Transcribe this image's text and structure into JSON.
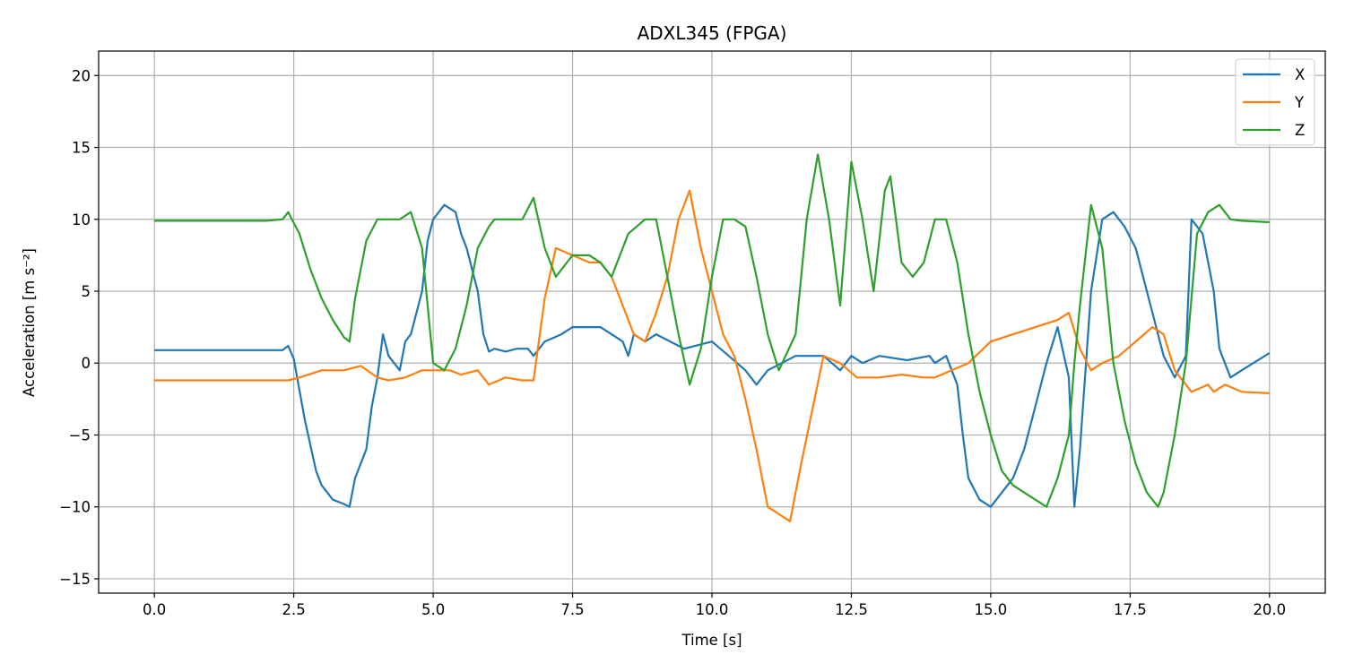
{
  "chart_data": {
    "type": "line",
    "title": "ADXL345 (FPGA)",
    "xlabel": "Time [s]",
    "ylabel": "Acceleration [m s⁻²]",
    "xlim": [
      -1.0,
      21.0
    ],
    "ylim": [
      -16.0,
      21.7
    ],
    "xticks": [
      0.0,
      2.5,
      5.0,
      7.5,
      10.0,
      12.5,
      15.0,
      17.5,
      20.0
    ],
    "xtick_labels": [
      "0.0",
      "2.5",
      "5.0",
      "7.5",
      "10.0",
      "12.5",
      "15.0",
      "17.5",
      "20.0"
    ],
    "yticks": [
      -15,
      -10,
      -5,
      0,
      5,
      10,
      15,
      20
    ],
    "ytick_labels": [
      "−15",
      "−10",
      "−5",
      "0",
      "5",
      "10",
      "15",
      "20"
    ],
    "grid": true,
    "legend_position": "top-right",
    "series": [
      {
        "name": "X",
        "color": "#1f77b4",
        "x": [
          0.0,
          1.0,
          2.0,
          2.3,
          2.4,
          2.5,
          2.7,
          2.9,
          3.0,
          3.2,
          3.4,
          3.5,
          3.6,
          3.8,
          3.9,
          4.0,
          4.1,
          4.2,
          4.4,
          4.5,
          4.6,
          4.8,
          4.9,
          5.0,
          5.2,
          5.4,
          5.5,
          5.6,
          5.8,
          5.9,
          6.0,
          6.1,
          6.3,
          6.5,
          6.7,
          6.8,
          7.0,
          7.3,
          7.5,
          8.0,
          8.2,
          8.4,
          8.5,
          8.6,
          8.8,
          9.0,
          9.5,
          10.0,
          10.3,
          10.6,
          10.8,
          11.0,
          11.5,
          12.0,
          12.3,
          12.5,
          12.7,
          13.0,
          13.5,
          13.9,
          14.0,
          14.2,
          14.4,
          14.5,
          14.6,
          14.8,
          15.0,
          15.2,
          15.4,
          15.6,
          15.8,
          16.0,
          16.2,
          16.4,
          16.5,
          16.6,
          16.8,
          17.0,
          17.2,
          17.4,
          17.6,
          17.8,
          18.0,
          18.1,
          18.3,
          18.5,
          18.6,
          18.8,
          19.0,
          19.1,
          19.3,
          19.5,
          20.0
        ],
        "y": [
          0.9,
          0.9,
          0.9,
          0.9,
          1.2,
          0.3,
          -4.0,
          -7.5,
          -8.5,
          -9.5,
          -9.8,
          -10.0,
          -8.0,
          -6.0,
          -3.0,
          -1.0,
          2.0,
          0.5,
          -0.5,
          1.5,
          2.0,
          5.0,
          8.5,
          10.0,
          11.0,
          10.5,
          9.0,
          8.0,
          5.0,
          2.0,
          0.8,
          1.0,
          0.8,
          1.0,
          1.0,
          0.5,
          1.5,
          2.0,
          2.5,
          2.5,
          2.0,
          1.5,
          0.5,
          2.0,
          1.5,
          2.0,
          1.0,
          1.5,
          0.5,
          -0.5,
          -1.5,
          -0.5,
          0.5,
          0.5,
          -0.5,
          0.5,
          0.0,
          0.5,
          0.2,
          0.5,
          0.0,
          0.5,
          -1.5,
          -5.0,
          -8.0,
          -9.5,
          -10.0,
          -9.0,
          -8.0,
          -6.0,
          -3.0,
          0.0,
          2.5,
          -1.0,
          -10.0,
          -6.0,
          5.0,
          10.0,
          10.5,
          9.5,
          8.0,
          5.0,
          2.0,
          0.5,
          -1.0,
          0.5,
          10.0,
          9.0,
          5.0,
          1.0,
          -1.0,
          -0.5,
          0.7
        ]
      },
      {
        "name": "Y",
        "color": "#ff7f0e",
        "x": [
          0.0,
          1.0,
          2.0,
          2.4,
          2.6,
          3.0,
          3.4,
          3.7,
          4.0,
          4.2,
          4.5,
          4.8,
          5.0,
          5.3,
          5.5,
          5.8,
          6.0,
          6.3,
          6.6,
          6.8,
          7.0,
          7.2,
          7.5,
          7.8,
          8.0,
          8.2,
          8.4,
          8.6,
          8.8,
          9.0,
          9.2,
          9.4,
          9.6,
          9.8,
          10.0,
          10.2,
          10.4,
          10.6,
          10.8,
          11.0,
          11.2,
          11.4,
          11.6,
          12.0,
          12.3,
          12.6,
          13.0,
          13.4,
          13.8,
          14.0,
          14.3,
          14.6,
          15.0,
          15.4,
          15.8,
          16.2,
          16.4,
          16.6,
          16.8,
          17.0,
          17.3,
          17.6,
          17.9,
          18.1,
          18.3,
          18.6,
          18.9,
          19.0,
          19.2,
          19.5,
          20.0
        ],
        "y": [
          -1.2,
          -1.2,
          -1.2,
          -1.2,
          -1.0,
          -0.5,
          -0.5,
          -0.2,
          -1.0,
          -1.2,
          -1.0,
          -0.5,
          -0.5,
          -0.5,
          -0.8,
          -0.5,
          -1.5,
          -1.0,
          -1.2,
          -1.2,
          4.5,
          8.0,
          7.5,
          7.0,
          7.0,
          6.0,
          4.0,
          2.0,
          1.5,
          3.5,
          6.0,
          10.0,
          12.0,
          8.0,
          5.0,
          2.0,
          0.5,
          -2.5,
          -6.0,
          -10.0,
          -10.5,
          -11.0,
          -7.0,
          0.5,
          0.0,
          -1.0,
          -1.0,
          -0.8,
          -1.0,
          -1.0,
          -0.5,
          0.0,
          1.5,
          2.0,
          2.5,
          3.0,
          3.5,
          1.0,
          -0.5,
          0.0,
          0.5,
          1.5,
          2.5,
          2.0,
          -0.5,
          -2.0,
          -1.5,
          -2.0,
          -1.5,
          -2.0,
          -2.1
        ]
      },
      {
        "name": "Z",
        "color": "#2ca02c",
        "x": [
          0.0,
          1.0,
          2.0,
          2.3,
          2.4,
          2.6,
          2.8,
          3.0,
          3.2,
          3.4,
          3.5,
          3.6,
          3.8,
          4.0,
          4.2,
          4.4,
          4.6,
          4.8,
          4.9,
          5.0,
          5.2,
          5.4,
          5.6,
          5.8,
          6.0,
          6.1,
          6.3,
          6.6,
          6.8,
          7.0,
          7.2,
          7.5,
          7.8,
          8.0,
          8.2,
          8.5,
          8.8,
          9.0,
          9.2,
          9.4,
          9.6,
          9.8,
          10.0,
          10.2,
          10.4,
          10.6,
          10.8,
          11.0,
          11.2,
          11.5,
          11.7,
          11.9,
          12.1,
          12.3,
          12.5,
          12.7,
          12.9,
          13.1,
          13.2,
          13.4,
          13.6,
          13.8,
          14.0,
          14.2,
          14.4,
          14.6,
          14.8,
          15.0,
          15.2,
          15.4,
          15.6,
          15.8,
          16.0,
          16.2,
          16.4,
          16.5,
          16.6,
          16.8,
          17.0,
          17.2,
          17.4,
          17.6,
          17.8,
          18.0,
          18.1,
          18.3,
          18.5,
          18.7,
          18.9,
          19.1,
          19.3,
          19.5,
          20.0
        ],
        "y": [
          9.9,
          9.9,
          9.9,
          10.0,
          10.5,
          9.0,
          6.5,
          4.5,
          3.0,
          1.8,
          1.5,
          4.5,
          8.5,
          10.0,
          10.0,
          10.0,
          10.5,
          8.0,
          4.0,
          0.0,
          -0.5,
          1.0,
          4.0,
          8.0,
          9.5,
          10.0,
          10.0,
          10.0,
          11.5,
          8.0,
          6.0,
          7.5,
          7.5,
          7.0,
          6.0,
          9.0,
          10.0,
          10.0,
          6.0,
          2.0,
          -1.5,
          1.0,
          6.0,
          10.0,
          10.0,
          9.5,
          6.0,
          2.0,
          -0.5,
          2.0,
          10.0,
          14.5,
          10.0,
          4.0,
          14.0,
          10.0,
          5.0,
          12.0,
          13.0,
          7.0,
          6.0,
          7.0,
          10.0,
          10.0,
          7.0,
          2.0,
          -2.0,
          -5.0,
          -7.5,
          -8.5,
          -9.0,
          -9.5,
          -10.0,
          -8.0,
          -5.0,
          0.0,
          4.0,
          11.0,
          8.0,
          0.0,
          -4.0,
          -7.0,
          -9.0,
          -10.0,
          -9.0,
          -5.0,
          0.0,
          9.0,
          10.5,
          11.0,
          10.0,
          9.9,
          9.8
        ]
      }
    ]
  }
}
